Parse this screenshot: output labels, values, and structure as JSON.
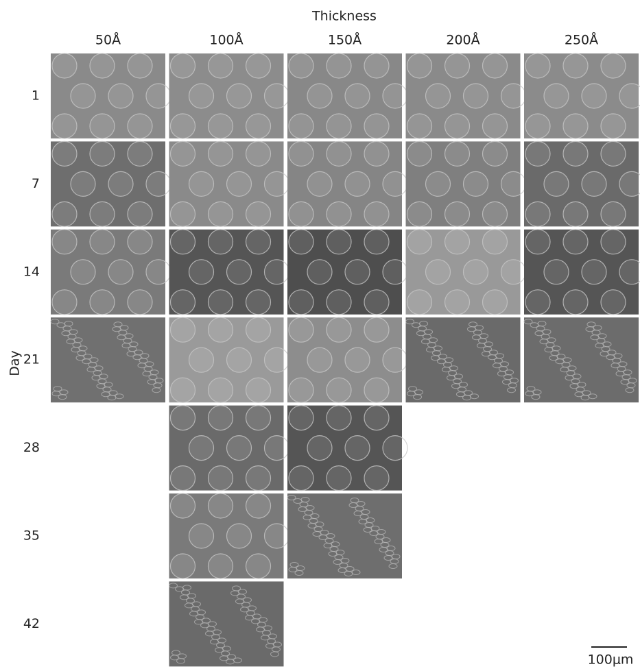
{
  "header": {
    "title": "Thickness",
    "columns": [
      "50Å",
      "100Å",
      "150Å",
      "200Å",
      "250Å"
    ]
  },
  "side": {
    "title": "Day",
    "rows": [
      "1",
      "7",
      "14",
      "21",
      "28",
      "35",
      "42"
    ]
  },
  "scale_bar": {
    "label": "100μm"
  }
}
